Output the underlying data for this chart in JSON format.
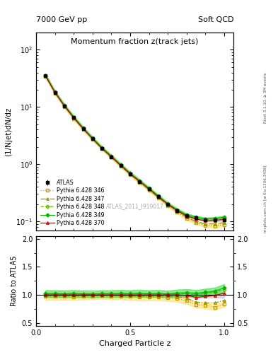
{
  "title_main": "Momentum fraction z(track jets)",
  "header_left": "7000 GeV pp",
  "header_right": "Soft QCD",
  "ylabel_main": "(1/Njet)dN/dz",
  "ylabel_ratio": "Ratio to ATLAS",
  "xlabel": "Charged Particle z",
  "watermark": "ATLAS_2011_I919017",
  "rivet_text": "Rivet 3.1.10, ≥ 3M events",
  "mcplots_text": "mcplots.cern.ch [arXiv:1306.3436]",
  "z_values": [
    0.05,
    0.1,
    0.15,
    0.2,
    0.25,
    0.3,
    0.35,
    0.4,
    0.45,
    0.5,
    0.55,
    0.6,
    0.65,
    0.7,
    0.75,
    0.8,
    0.85,
    0.9,
    0.95,
    1.0
  ],
  "atlas_y": [
    35.0,
    18.0,
    10.5,
    6.5,
    4.2,
    2.8,
    1.9,
    1.35,
    0.95,
    0.68,
    0.5,
    0.37,
    0.27,
    0.2,
    0.155,
    0.125,
    0.115,
    0.105,
    0.105,
    0.105
  ],
  "atlas_yerr": [
    1.5,
    0.8,
    0.4,
    0.25,
    0.16,
    0.1,
    0.07,
    0.05,
    0.035,
    0.025,
    0.018,
    0.013,
    0.01,
    0.008,
    0.006,
    0.005,
    0.005,
    0.005,
    0.005,
    0.005
  ],
  "py346_y": [
    34.0,
    17.5,
    10.2,
    6.3,
    4.1,
    2.75,
    1.88,
    1.32,
    0.93,
    0.66,
    0.48,
    0.355,
    0.26,
    0.19,
    0.145,
    0.112,
    0.095,
    0.085,
    0.082,
    0.088
  ],
  "py347_y": [
    34.5,
    17.8,
    10.4,
    6.4,
    4.15,
    2.77,
    1.89,
    1.34,
    0.94,
    0.67,
    0.49,
    0.36,
    0.265,
    0.195,
    0.15,
    0.118,
    0.1,
    0.09,
    0.09,
    0.095
  ],
  "py348_y": [
    35.5,
    18.2,
    10.6,
    6.6,
    4.25,
    2.83,
    1.93,
    1.37,
    0.97,
    0.69,
    0.51,
    0.375,
    0.275,
    0.202,
    0.158,
    0.128,
    0.115,
    0.108,
    0.11,
    0.115
  ],
  "py349_y": [
    35.8,
    18.4,
    10.7,
    6.65,
    4.28,
    2.85,
    1.94,
    1.38,
    0.975,
    0.695,
    0.515,
    0.378,
    0.277,
    0.203,
    0.16,
    0.13,
    0.118,
    0.11,
    0.112,
    0.118
  ],
  "py370_y": [
    35.0,
    18.0,
    10.5,
    6.5,
    4.2,
    2.8,
    1.9,
    1.35,
    0.95,
    0.68,
    0.5,
    0.37,
    0.27,
    0.2,
    0.155,
    0.124,
    0.11,
    0.102,
    0.104,
    0.108
  ],
  "colors": {
    "atlas": "#000000",
    "py346": "#c8a000",
    "py347": "#909000",
    "py348": "#60b800",
    "py349": "#00b800",
    "py370": "#c80000"
  },
  "band_colors": {
    "py346": "#ffe070",
    "py347": "#c8c800",
    "py348": "#88d800",
    "py349": "#40e040"
  },
  "xlim": [
    0.0,
    1.05
  ],
  "ylim_main": [
    0.07,
    200
  ],
  "ylim_ratio": [
    0.45,
    2.05
  ]
}
